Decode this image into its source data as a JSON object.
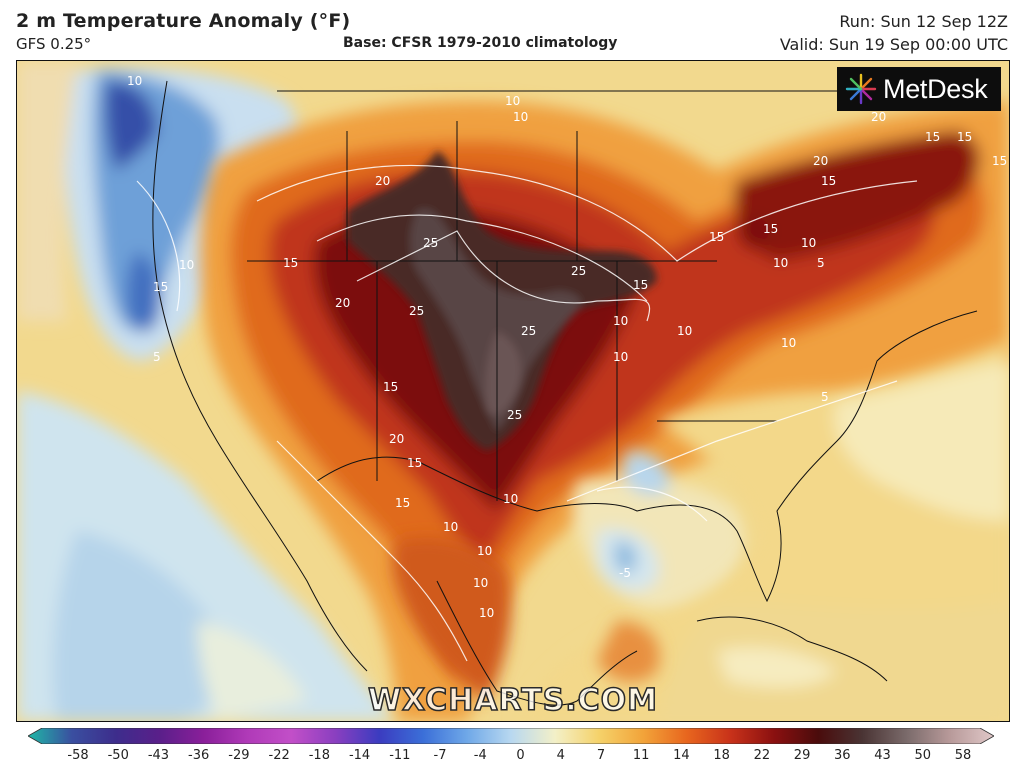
{
  "header": {
    "title": "2 m Temperature Anomaly (°F)",
    "model": "GFS 0.25°",
    "base": "Base: CFSR 1979-2010 climatology",
    "run": "Run: Sun 12 Sep 12Z",
    "valid": "Valid: Sun 19 Sep 00:00 UTC"
  },
  "logo": {
    "text": "MetDesk"
  },
  "watermark": "WXCHARTS.COM",
  "contour_labels": [
    "20",
    "15",
    "15",
    "15",
    "20",
    "15",
    "10",
    "10",
    "15",
    "10",
    "15",
    "5",
    "10",
    "5",
    "25",
    "25",
    "25",
    "25",
    "25",
    "20",
    "20",
    "15",
    "15",
    "10",
    "10",
    "15",
    "10",
    "10",
    "10",
    "10",
    "15",
    "20",
    "15",
    "-5",
    "10",
    "10",
    "10",
    "10",
    "15",
    "10",
    "5"
  ],
  "colorbar": {
    "ticks": [
      "-58",
      "-50",
      "-43",
      "-36",
      "-29",
      "-22",
      "-18",
      "-14",
      "-11",
      "-7",
      "-4",
      "0",
      "4",
      "7",
      "11",
      "14",
      "18",
      "22",
      "29",
      "36",
      "43",
      "50",
      "58"
    ],
    "colors": [
      "#1fb8a6",
      "#3a4fa0",
      "#3d2d8c",
      "#5a1f8a",
      "#8a1f9a",
      "#b03ab8",
      "#c24fc8",
      "#8a3fc0",
      "#3b3cc0",
      "#3b6fd8",
      "#6fa8e8",
      "#b8d8f0",
      "#f3f0c8",
      "#f5d26a",
      "#f2a43a",
      "#e8661e",
      "#c8321a",
      "#8a1010",
      "#4a0c0c",
      "#4a3434",
      "#7a6a6a",
      "#b89a9a",
      "#e0c8c8"
    ]
  }
}
